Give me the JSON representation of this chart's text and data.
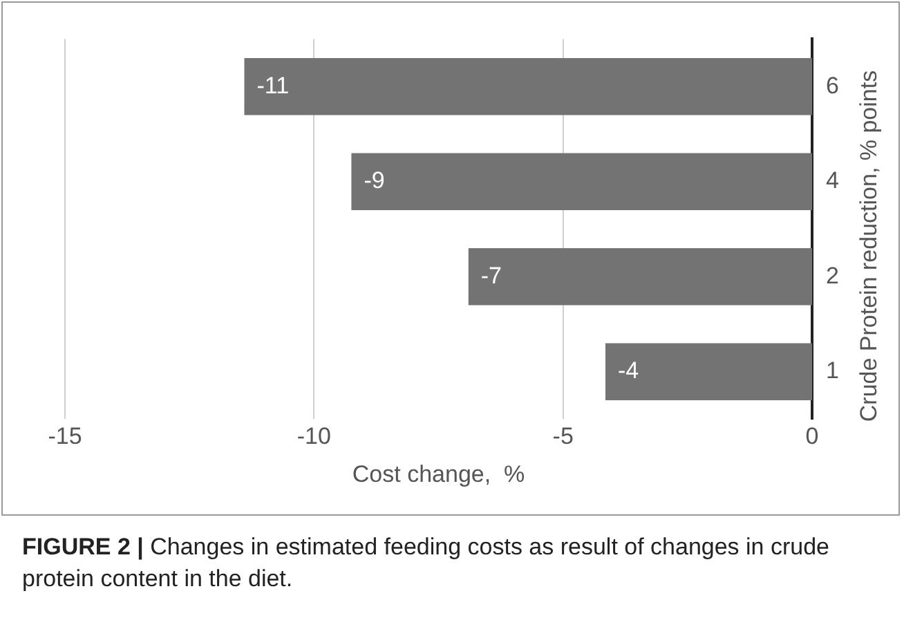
{
  "chart_data": {
    "type": "bar",
    "orientation": "horizontal",
    "xlabel": "Cost change,  %",
    "ylabel": "Crude Protein reduction, % points",
    "categories": [
      "6",
      "4",
      "2",
      "1"
    ],
    "values": [
      -11.4,
      -9.25,
      -6.9,
      -4.15
    ],
    "value_labels": [
      "-11",
      "-9",
      "-7",
      "-4"
    ],
    "color": "#737373",
    "xlim": [
      -15,
      0
    ],
    "xticks": [
      -15,
      -10,
      -5,
      0
    ],
    "grid": "x",
    "legend": false,
    "annotations": [
      "FIGURE 2 | Changes in estimated feeding costs as result of changes in crude protein content in the diet."
    ]
  }
}
